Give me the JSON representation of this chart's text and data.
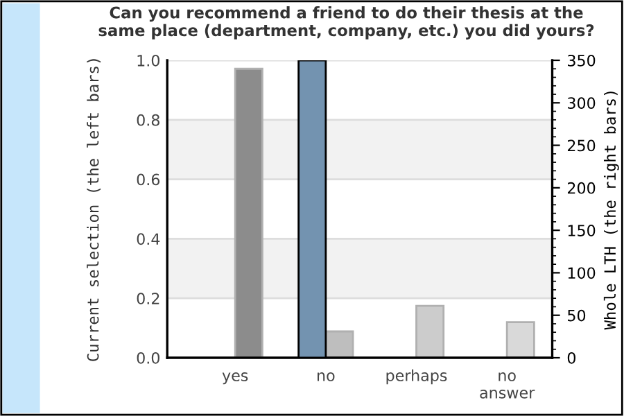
{
  "chart_data": {
    "type": "bar",
    "title": "Can you recommend a friend to do their thesis at the\nsame place (department, company, etc.) you did yours?",
    "categories": [
      "yes",
      "no",
      "perhaps",
      "no\nanswer"
    ],
    "series": [
      {
        "color": "#7393b0",
        "values": [
          null,
          1.0,
          null,
          null
        ]
      },
      {
        "colors": [
          "#8c8c8c",
          "#bebebe",
          "#cccccc",
          "#d9d9d9"
        ],
        "values": [
          340,
          31,
          61,
          42
        ],
        "axis": "y2"
      }
    ],
    "ylabel": "Current selection (the left bars)",
    "y2label": "Whole LTH (the right bars)",
    "ylim": [
      0,
      1.0
    ],
    "yticks": [
      {
        "value": 0,
        "label": "0.0"
      },
      0.2,
      0.4,
      0.6,
      0.8,
      {
        "value": 1,
        "label": "1.0"
      }
    ],
    "y2lim": [
      0,
      350
    ],
    "y2ticks": [
      0,
      50,
      100,
      150,
      200,
      250,
      300,
      350
    ],
    "bands": [
      {
        "axis": "y",
        "from": 0.2,
        "to": 0.4,
        "color": "#f2f2f2"
      },
      {
        "axis": "y",
        "from": 0.6,
        "to": 0.8,
        "color": "#f2f2f2"
      }
    ],
    "grid": "y"
  }
}
